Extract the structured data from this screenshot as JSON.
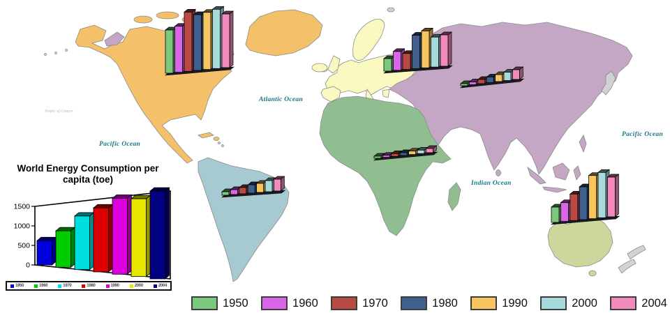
{
  "title": {
    "text": "World Energy Consumption per capita (toe)"
  },
  "years": [
    "1950",
    "1960",
    "1970",
    "1980",
    "1990",
    "2000",
    "2004"
  ],
  "legend": {
    "items": [
      {
        "label": "1950",
        "color": "#7CC87C"
      },
      {
        "label": "1960",
        "color": "#D966E6"
      },
      {
        "label": "1970",
        "color": "#B94A43"
      },
      {
        "label": "1980",
        "color": "#3F5F8F"
      },
      {
        "label": "1990",
        "color": "#F7C55F"
      },
      {
        "label": "2000",
        "color": "#A6DADB"
      },
      {
        "label": "2004",
        "color": "#F28ABE"
      }
    ]
  },
  "inset_legend": {
    "items": [
      {
        "label": "1950",
        "color": "#0000DD"
      },
      {
        "label": "1960",
        "color": "#00CC00"
      },
      {
        "label": "1970",
        "color": "#00DDDD"
      },
      {
        "label": "1980",
        "color": "#DD0000"
      },
      {
        "label": "1990",
        "color": "#DD00DD"
      },
      {
        "label": "2000",
        "color": "#E6E600"
      },
      {
        "label": "2004",
        "color": "#000080"
      }
    ]
  },
  "ocean_labels": [
    {
      "text": "Atlantic Ocean"
    },
    {
      "text": "Pacific Ocean"
    },
    {
      "text": "Pacific Ocean"
    },
    {
      "text": "Indian Ocean"
    },
    {
      "text": "Tropic of Cancer"
    }
  ],
  "map": {
    "colors": {
      "north_america": "#F4C06A",
      "south_america": "#A7C9D1",
      "europe": "#FAF9C0",
      "africa": "#90BE90",
      "asia": "#C4A6C5",
      "australia": "#CCD79C",
      "islands_gray": "#D2D2D2",
      "ocean": "#FFFFFF",
      "coastline": "#8A8A8A"
    }
  },
  "chart_data": [
    {
      "id": "world",
      "type": "bar",
      "title": "World Energy Consumption per capita (toe)",
      "categories": [
        "1950",
        "1960",
        "1970",
        "1980",
        "1990",
        "2000",
        "2004"
      ],
      "values": [
        620,
        900,
        1280,
        1480,
        1700,
        1690,
        1850
      ],
      "colors": [
        "#0000DD",
        "#00CC00",
        "#00DDDD",
        "#DD0000",
        "#DD00DD",
        "#E6E600",
        "#000080"
      ],
      "xlabel": "",
      "ylabel": "toe",
      "ylim": [
        0,
        1900
      ],
      "yticks": [
        0,
        500,
        1000,
        1500
      ],
      "grid": false,
      "legend_position": "bottom",
      "style": "3d-perspective"
    },
    {
      "id": "north-america",
      "region": "North America",
      "type": "bar",
      "categories": [
        "1950",
        "1960",
        "1970",
        "1980",
        "1990",
        "2000",
        "2004"
      ],
      "values": [
        62,
        66,
        85,
        80,
        82,
        85,
        77
      ],
      "units": "relative bar height (px), no axis shown"
    },
    {
      "id": "europe",
      "region": "Europe",
      "type": "bar",
      "categories": [
        "1950",
        "1960",
        "1970",
        "1980",
        "1990",
        "2000",
        "2004"
      ],
      "values": [
        18,
        27,
        23,
        48,
        53,
        43,
        45
      ],
      "units": "relative bar height (px), no axis shown"
    },
    {
      "id": "asia",
      "region": "Asia",
      "type": "bar",
      "categories": [
        "1950",
        "1960",
        "1970",
        "1980",
        "1990",
        "2000",
        "2004"
      ],
      "values": [
        3,
        4,
        6,
        8,
        10,
        12,
        14
      ],
      "units": "relative bar height (px), no axis shown"
    },
    {
      "id": "africa",
      "region": "Africa",
      "type": "bar",
      "categories": [
        "1950",
        "1960",
        "1970",
        "1980",
        "1990",
        "2000",
        "2004"
      ],
      "values": [
        3,
        3,
        4,
        4,
        5,
        5,
        6
      ],
      "units": "relative bar height (px), no axis shown"
    },
    {
      "id": "south-america",
      "region": "South America",
      "type": "bar",
      "categories": [
        "1950",
        "1960",
        "1970",
        "1980",
        "1990",
        "2000",
        "2004"
      ],
      "values": [
        5,
        7,
        9,
        12,
        13,
        16,
        17
      ],
      "units": "relative bar height (px), no axis shown"
    },
    {
      "id": "australia",
      "region": "Australia",
      "type": "bar",
      "categories": [
        "1950",
        "1960",
        "1970",
        "1980",
        "1990",
        "2000",
        "2004"
      ],
      "values": [
        22,
        27,
        38,
        47,
        62,
        65,
        57
      ],
      "units": "relative bar height (px), no axis shown"
    }
  ]
}
